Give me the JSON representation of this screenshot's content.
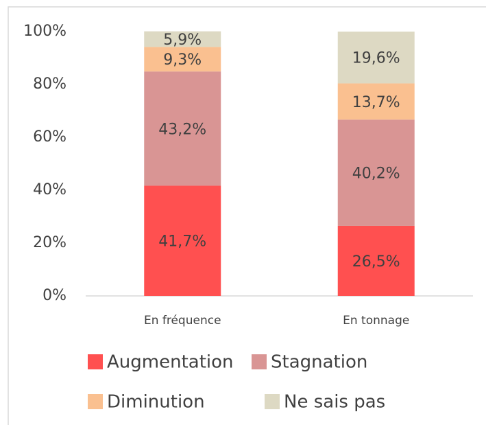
{
  "chart_data": {
    "type": "stacked_bar",
    "categories": [
      "En fréquence",
      "En tonnage"
    ],
    "series": [
      {
        "name": "Augmentation",
        "color": "#ff5050",
        "values": [
          41.7,
          26.5
        ],
        "value_labels": [
          "41,7%",
          "26,5%"
        ]
      },
      {
        "name": "Stagnation",
        "color": "#d99594",
        "values": [
          43.2,
          40.2
        ],
        "value_labels": [
          "43,2%",
          "40,2%"
        ]
      },
      {
        "name": "Diminution",
        "color": "#fac090",
        "values": [
          9.3,
          13.7
        ],
        "value_labels": [
          "9,3%",
          "13,7%"
        ]
      },
      {
        "name": "Ne sais pas",
        "color": "#ddd9c3",
        "values": [
          5.9,
          19.6
        ],
        "value_labels": [
          "5,9%",
          "19,6%"
        ]
      }
    ],
    "ylim": [
      0,
      100
    ],
    "yticks": [
      {
        "value": 0,
        "label": "0%"
      },
      {
        "value": 20,
        "label": "20%"
      },
      {
        "value": 40,
        "label": "40%"
      },
      {
        "value": 60,
        "label": "60%"
      },
      {
        "value": 80,
        "label": "80%"
      },
      {
        "value": 100,
        "label": "100%"
      }
    ],
    "grid": false,
    "legend": "bottom"
  }
}
